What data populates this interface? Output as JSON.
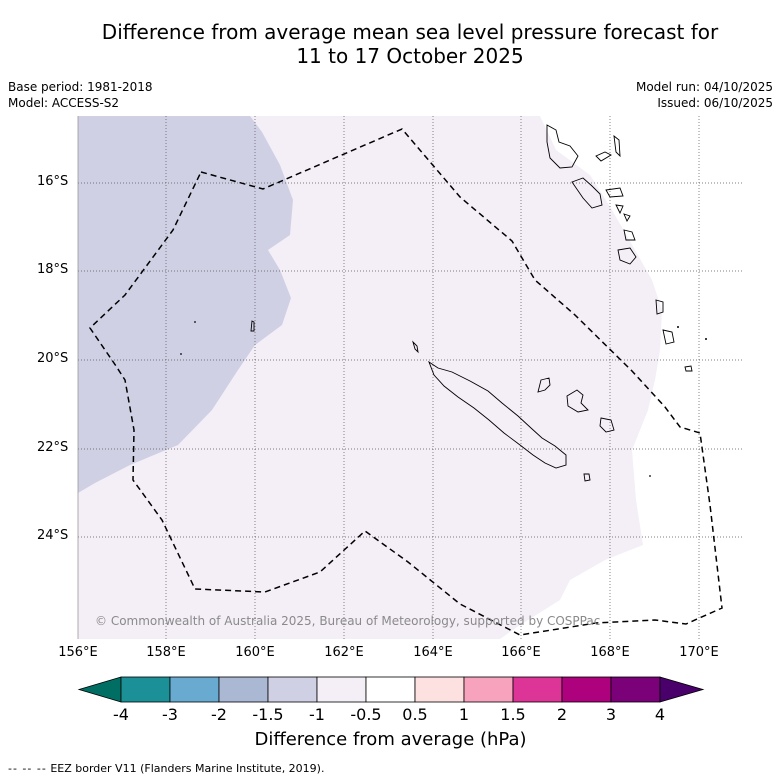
{
  "title_line1": "Difference from average mean sea level pressure forecast for",
  "title_line2": "11 to 17 October 2025",
  "base_period": "Base period: 1981-2018",
  "model": "Model: ACCESS-S2",
  "model_run": "Model run: 04/10/2025",
  "issued": "Issued: 06/10/2025",
  "latitude_labels": [
    "16°S",
    "18°S",
    "20°S",
    "22°S",
    "24°S"
  ],
  "longitude_labels": [
    "156°E",
    "158°E",
    "160°E",
    "162°E",
    "164°E",
    "166°E",
    "168°E",
    "170°E"
  ],
  "copyright": "© Commonwealth of Australia 2025, Bureau of Meteorology, supported by COSPPac",
  "colorbar": {
    "ticks": [
      "-4",
      "-3",
      "-2",
      "-1.5",
      "-1",
      "-0.5",
      "0.5",
      "1",
      "1.5",
      "2",
      "3",
      "4"
    ],
    "colors": [
      "#006e62",
      "#1b9097",
      "#69aad0",
      "#aab8d3",
      "#d0d0e5",
      "#f4eef7",
      "#ffffff",
      "#fde0e0",
      "#f7a3be",
      "#dd3497",
      "#ae017e",
      "#7a0177",
      "#49006a"
    ],
    "label": "Difference from average (hPa)"
  },
  "legend_footer": {
    "symbol": "--  --  --",
    "text": "EEZ border V11 (Flanders Marine Institute, 2019)."
  },
  "regions": {
    "west_anomaly_class": "-1.5",
    "main_anomaly_class": "-1",
    "east_anomaly_class": "-0.5 to 0.5"
  }
}
